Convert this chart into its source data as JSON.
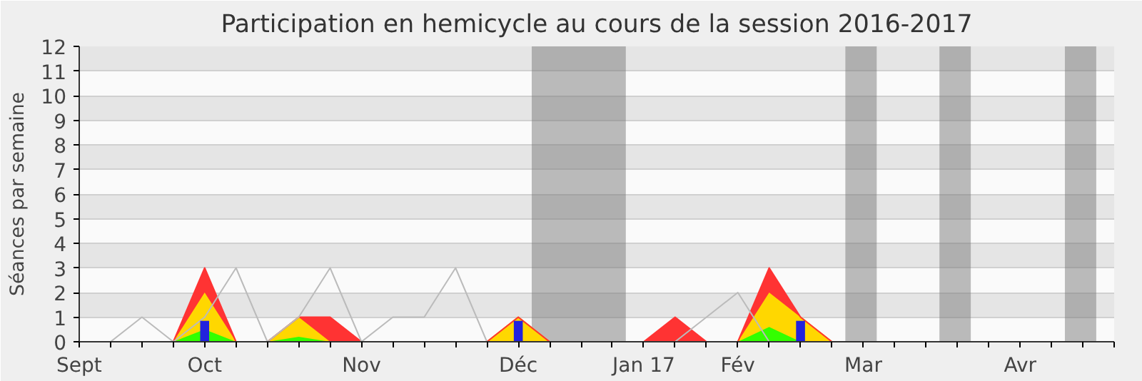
{
  "chart_data": {
    "type": "area",
    "title": "Participation en hemicycle au cours de la session 2016-2017",
    "ylabel": "Séances par semaine",
    "stacked": true,
    "x": [
      "2016-09-12",
      "2016-09-19",
      "2016-09-26",
      "2016-10-03",
      "2016-10-10",
      "2016-10-17",
      "2016-10-24",
      "2016-10-31",
      "2016-11-07",
      "2016-11-14",
      "2016-11-21",
      "2016-11-28",
      "2016-12-05",
      "2016-12-12",
      "2016-12-19",
      "2016-12-26",
      "2017-01-02",
      "2017-01-09",
      "2017-01-16",
      "2017-01-23",
      "2017-01-30",
      "2017-02-06",
      "2017-02-13",
      "2017-02-20",
      "2017-02-27",
      "2017-03-06",
      "2017-03-13",
      "2017-03-20",
      "2017-03-27",
      "2017-04-03",
      "2017-04-10",
      "2017-04-17",
      "2017-04-24",
      "2017-05-01"
    ],
    "series": [
      {
        "color": "#33ff00",
        "values": [
          0,
          0,
          0,
          0,
          0.5,
          0,
          0,
          0.2,
          0,
          0,
          0,
          0,
          0,
          0,
          0,
          0,
          0,
          0,
          0,
          0,
          0,
          0,
          0.6,
          0,
          0,
          0,
          0,
          0,
          0,
          0,
          0,
          0,
          0,
          0
        ]
      },
      {
        "color": "#ffd700",
        "values": [
          0,
          0,
          0,
          0,
          1.5,
          0,
          0,
          0.8,
          0,
          0,
          0,
          0,
          0,
          0,
          1,
          0,
          0,
          0,
          0,
          0,
          0,
          0,
          1.4,
          1,
          0,
          0,
          0,
          0,
          0,
          0,
          0,
          0,
          0,
          0
        ]
      },
      {
        "color": "#ff3333",
        "values": [
          0,
          0,
          0,
          0,
          1,
          0,
          0,
          0,
          1,
          0,
          0,
          0,
          0,
          0,
          0,
          0,
          0,
          0,
          0,
          1,
          0,
          0,
          1,
          0,
          0,
          0,
          0,
          0,
          0,
          0,
          0,
          0,
          0,
          0
        ]
      },
      {
        "type": "line",
        "color": "#bbbbbb",
        "values": [
          null,
          0,
          1,
          0,
          1,
          3,
          0,
          1,
          3,
          0,
          1,
          1,
          3,
          0,
          0,
          0,
          0,
          0,
          0,
          0,
          1,
          2,
          0,
          0,
          0,
          0,
          0,
          0,
          0,
          0,
          0,
          0,
          0,
          null
        ]
      },
      {
        "type": "bar",
        "color": "#2222dd",
        "values": [
          null,
          null,
          null,
          null,
          0.85,
          null,
          null,
          null,
          null,
          null,
          null,
          null,
          null,
          null,
          0.85,
          null,
          null,
          null,
          null,
          null,
          null,
          null,
          null,
          0.85,
          null,
          null,
          null,
          null,
          null,
          null,
          null,
          null,
          null,
          null
        ]
      }
    ],
    "xlim": [
      "2016-09-12",
      "2017-05-01"
    ],
    "xticks": [
      {
        "value": "2016-09-12",
        "label": "Sept"
      },
      {
        "value": "2016-09-19",
        "label": null
      },
      {
        "value": "2016-09-26",
        "label": null
      },
      {
        "value": "2016-10-03",
        "label": null
      },
      {
        "value": "2016-10-10",
        "label": "Oct"
      },
      {
        "value": "2016-10-17",
        "label": null
      },
      {
        "value": "2016-10-24",
        "label": null
      },
      {
        "value": "2016-10-31",
        "label": null
      },
      {
        "value": "2016-11-07",
        "label": null
      },
      {
        "value": "2016-11-14",
        "label": "Nov"
      },
      {
        "value": "2016-11-21",
        "label": null
      },
      {
        "value": "2016-11-28",
        "label": null
      },
      {
        "value": "2016-12-05",
        "label": null
      },
      {
        "value": "2016-12-12",
        "label": null
      },
      {
        "value": "2016-12-19",
        "label": "Déc"
      },
      {
        "value": "2016-12-26",
        "label": null
      },
      {
        "value": "2017-01-02",
        "label": null
      },
      {
        "value": "2017-01-09",
        "label": null
      },
      {
        "value": "2017-01-16",
        "label": "Jan 17"
      },
      {
        "value": "2017-01-23",
        "label": null
      },
      {
        "value": "2017-01-30",
        "label": null
      },
      {
        "value": "2017-02-06",
        "label": "Fév"
      },
      {
        "value": "2017-02-13",
        "label": null
      },
      {
        "value": "2017-02-20",
        "label": null
      },
      {
        "value": "2017-02-27",
        "label": null
      },
      {
        "value": "2017-03-06",
        "label": "Mar"
      },
      {
        "value": "2017-03-13",
        "label": null
      },
      {
        "value": "2017-03-20",
        "label": null
      },
      {
        "value": "2017-03-27",
        "label": null
      },
      {
        "value": "2017-04-03",
        "label": null
      },
      {
        "value": "2017-04-10",
        "label": "Avr"
      },
      {
        "value": "2017-04-17",
        "label": null
      },
      {
        "value": "2017-04-24",
        "label": null
      },
      {
        "value": "2017-05-01",
        "label": null
      }
    ],
    "ylim": [
      0,
      12
    ],
    "yticks": [
      0,
      1,
      2,
      3,
      4,
      5,
      6,
      7,
      8,
      9,
      10,
      11,
      12
    ],
    "grid": "y",
    "bands": [
      {
        "axis": "x",
        "from": "2016-12-22",
        "to": "2017-01-12",
        "color": "#767676"
      },
      {
        "axis": "x",
        "from": "2017-03-02",
        "to": "2017-03-09",
        "color": "#767676"
      },
      {
        "axis": "x",
        "from": "2017-03-23",
        "to": "2017-03-30",
        "color": "#767676"
      },
      {
        "axis": "x",
        "from": "2017-04-20",
        "to": "2017-04-27",
        "color": "#767676"
      }
    ]
  }
}
